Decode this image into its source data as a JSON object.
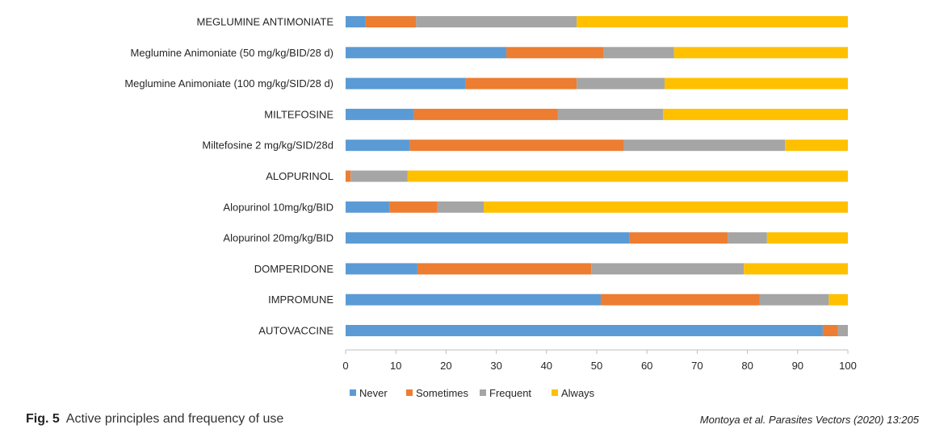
{
  "chart_data": {
    "type": "bar",
    "orientation": "horizontal",
    "stacked": true,
    "categories": [
      "MEGLUMINE ANTIMONIATE",
      "Meglumine Animoniate (50 mg/kg/BID/28 d)",
      "Meglumine Animoniate (100 mg/kg/SID/28 d)",
      "MILTEFOSINE",
      "Miltefosine 2 mg/kg/SID/28d",
      "ALOPURINOL",
      "Alopurinol 10mg/kg/BID",
      "Alopurinol 20mg/kg/BID",
      "DOMPERIDONE",
      "IMPROMUNE",
      "AUTOVACCINE"
    ],
    "series": [
      {
        "name": "Never",
        "color": "#5B9BD5",
        "values": [
          4,
          32,
          23.8,
          13.6,
          12.8,
          0,
          8.7,
          56.5,
          14.3,
          50.8,
          95
        ]
      },
      {
        "name": "Sometimes",
        "color": "#ED7D31",
        "values": [
          10,
          19.4,
          22.2,
          28.6,
          42.6,
          1,
          9.6,
          19.6,
          34.6,
          31.6,
          3
        ]
      },
      {
        "name": "Frequent",
        "color": "#A5A5A5",
        "values": [
          32,
          14,
          17.5,
          21,
          32.1,
          11.3,
          9.2,
          7.8,
          30.4,
          13.8,
          2
        ]
      },
      {
        "name": "Always",
        "color": "#FFC000",
        "values": [
          54,
          34.6,
          36.5,
          36.8,
          12.5,
          87.7,
          72.5,
          16.1,
          20.7,
          3.8,
          0
        ]
      }
    ],
    "xticks": [
      "0",
      "10",
      "20",
      "30",
      "40",
      "50",
      "60",
      "70",
      "80",
      "90",
      "100"
    ],
    "xlim": [
      0,
      100
    ],
    "legend": "bottom",
    "grid": false
  },
  "caption": {
    "fig_label": "Fig. 5",
    "text": "Active principles and frequency of use"
  },
  "citation": "Montoya et al. Parasites Vectors (2020) 13:205"
}
